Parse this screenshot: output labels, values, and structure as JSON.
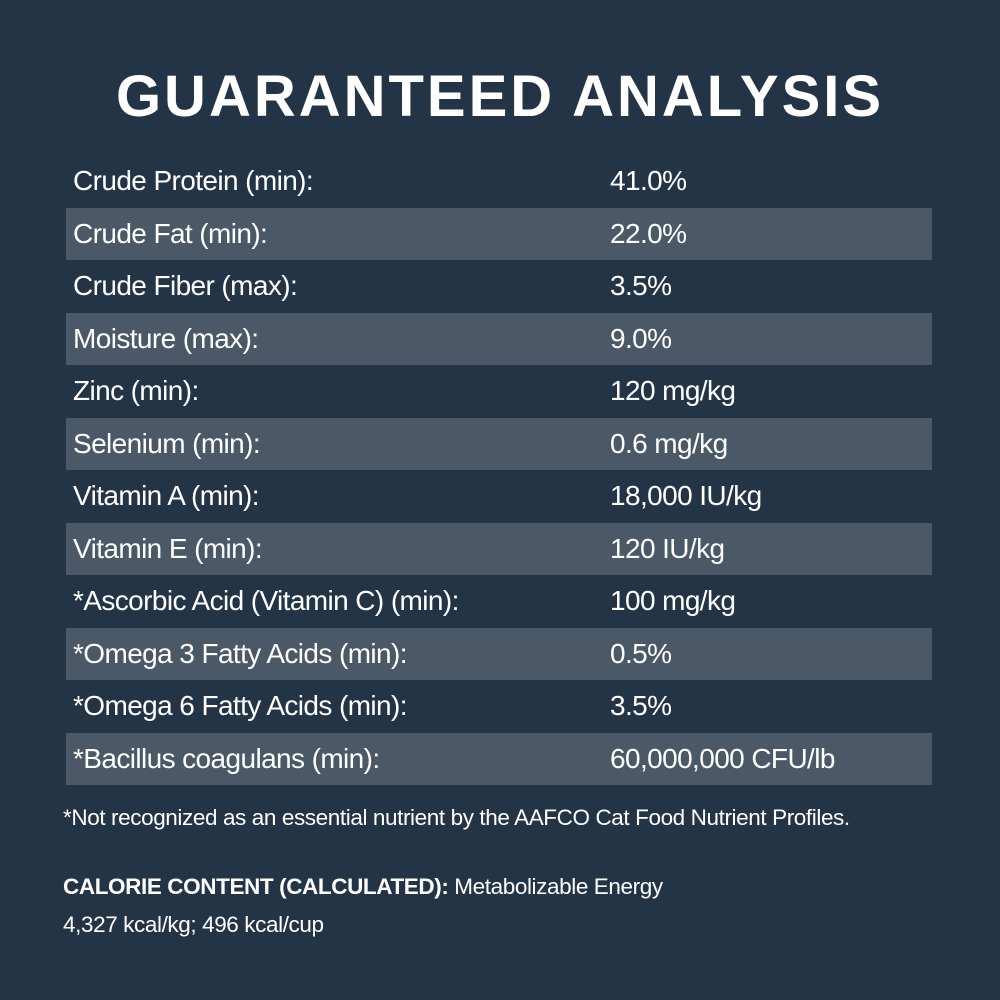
{
  "title": "GUARANTEED ANALYSIS",
  "rows": [
    {
      "label": "Crude Protein (min):",
      "value": "41.0%"
    },
    {
      "label": "Crude Fat (min):",
      "value": "22.0%"
    },
    {
      "label": "Crude Fiber (max):",
      "value": "3.5%"
    },
    {
      "label": "Moisture (max):",
      "value": "9.0%"
    },
    {
      "label": "Zinc (min):",
      "value": "120 mg/kg"
    },
    {
      "label": "Selenium (min):",
      "value": "0.6 mg/kg"
    },
    {
      "label": "Vitamin A (min):",
      "value": "18,000 IU/kg"
    },
    {
      "label": "Vitamin E (min):",
      "value": "120 IU/kg"
    },
    {
      "label": "*Ascorbic Acid (Vitamin C) (min):",
      "value": "100 mg/kg"
    },
    {
      "label": "*Omega 3 Fatty Acids (min):",
      "value": "0.5%"
    },
    {
      "label": "*Omega 6 Fatty Acids (min):",
      "value": "3.5%"
    },
    {
      "label": "*Bacillus coagulans (min):",
      "value": "60,000,000 CFU/lb"
    }
  ],
  "footnote": "*Not recognized as an essential nutrient by the AAFCO Cat Food Nutrient Profiles.",
  "calorie": {
    "heading": "CALORIE CONTENT (CALCULATED):",
    "text": "Metabolizable Energy",
    "values": "4,327 kcal/kg; 496 kcal/cup"
  },
  "colors": {
    "background": "#243447",
    "stripe": "#4a5867",
    "text": "#ffffff"
  }
}
